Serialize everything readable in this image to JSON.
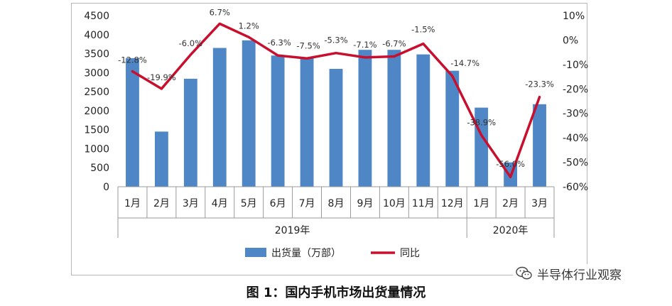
{
  "chart_data": {
    "type": "bar+line",
    "title": "图 1：国内手机市场出货量情况",
    "categories": [
      "1月",
      "2月",
      "3月",
      "4月",
      "5月",
      "6月",
      "7月",
      "8月",
      "9月",
      "10月",
      "11月",
      "12月",
      "1月",
      "2月",
      "3月"
    ],
    "groups": [
      {
        "label": "2019年",
        "start": 0,
        "end": 11
      },
      {
        "label": "2020年",
        "start": 12,
        "end": 14
      }
    ],
    "series": [
      {
        "name": "出货量（万部）",
        "type": "bar",
        "axis": "left",
        "color": "#4f86c6",
        "values": [
          3380,
          1450,
          2840,
          3650,
          3850,
          3450,
          3400,
          3100,
          3600,
          3600,
          3480,
          3050,
          2080,
          640,
          2170
        ]
      },
      {
        "name": "同比",
        "type": "line",
        "axis": "right",
        "color": "#c8102e",
        "values": [
          -12.8,
          -19.9,
          -6.0,
          6.7,
          1.2,
          -6.3,
          -7.5,
          -5.3,
          -7.1,
          -6.7,
          -1.5,
          -14.7,
          -38.9,
          -56.0,
          -23.3
        ],
        "labels": [
          "-12.8%",
          "-19.9%",
          "-6.0%",
          "6.7%",
          "1.2%",
          "-6.3%",
          "-7.5%",
          "-5.3%",
          "-7.1%",
          "-6.7%",
          "-1.5%",
          "-14.7%",
          "-38.9%",
          "-56.0%",
          "-23.3%"
        ]
      }
    ],
    "left_axis": {
      "min": 0,
      "max": 4500,
      "step": 500,
      "ticks": [
        "0",
        "500",
        "1000",
        "1500",
        "2000",
        "2500",
        "3000",
        "3500",
        "4000",
        "4500"
      ]
    },
    "right_axis": {
      "min": -60,
      "max": 10,
      "step": 10,
      "ticks": [
        "-60%",
        "-50%",
        "-40%",
        "-30%",
        "-20%",
        "-10%",
        "0%",
        "10%"
      ]
    },
    "legend_position": "bottom",
    "grid": false
  },
  "watermark": {
    "icon": "wechat-icon",
    "text": "半导体行业观察"
  }
}
